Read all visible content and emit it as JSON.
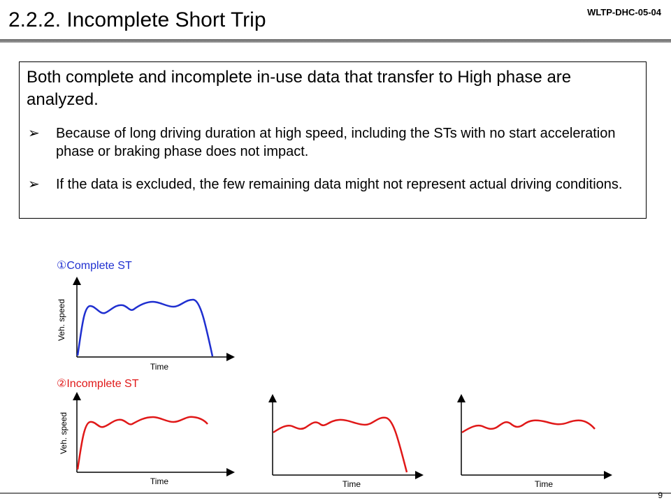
{
  "header": {
    "title": "2.2.2. Incomplete Short Trip",
    "doc_id": "WLTP-DHC-05-04"
  },
  "box": {
    "lead": "Both complete and incomplete in-use data that transfer to High phase are analyzed.",
    "bullets": [
      "Because of long driving duration at high speed, including the STs with no start acceleration phase or braking phase does not impact.",
      "If the data is excluded, the few remaining data might not represent actual driving conditions."
    ],
    "bullet_icon": "arrow-bullet-icon"
  },
  "diagrams": {
    "complete_label": "①Complete ST",
    "incomplete_label": "②Incomplete ST",
    "y_axis_label": "Veh. speed",
    "x_axis_label": "Time",
    "complete_color": "#1f2fd0",
    "incomplete_color": "#e01818"
  },
  "footer": {
    "page_number": "9"
  }
}
